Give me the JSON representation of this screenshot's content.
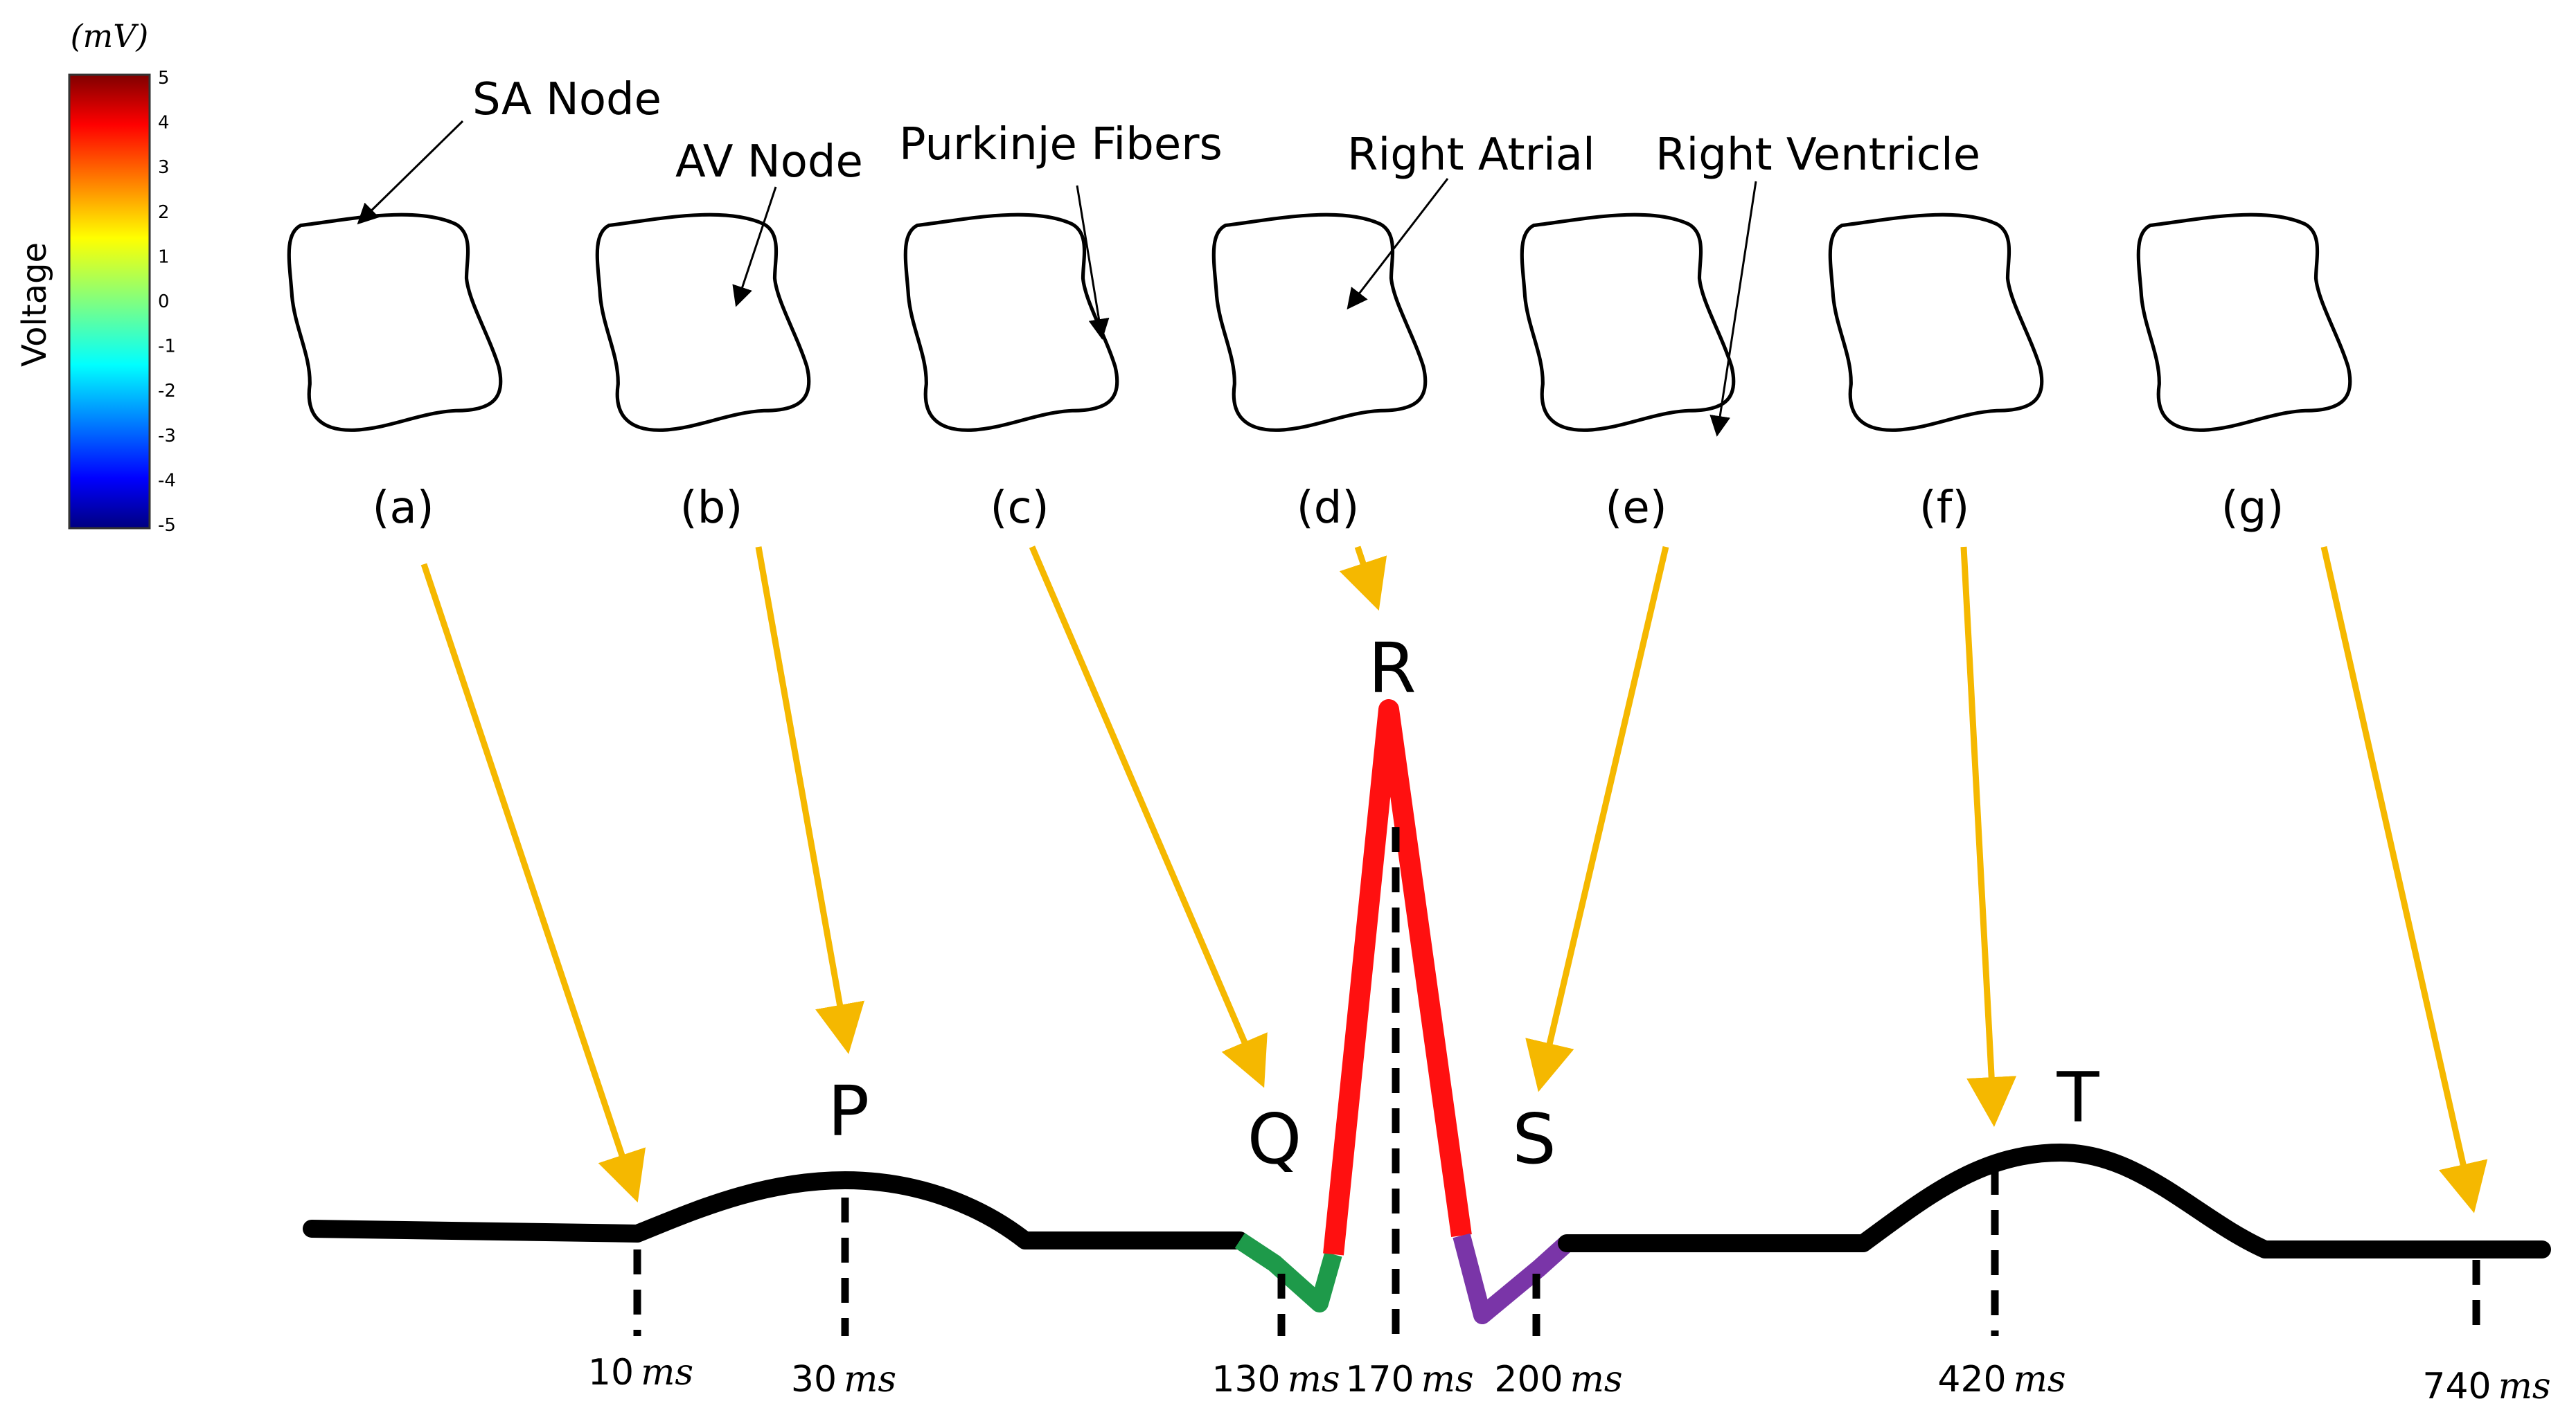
{
  "colorbar": {
    "unit_label": "(mV)",
    "axis_title": "Voltage",
    "ticks": [
      "5",
      "4",
      "3",
      "2",
      "1",
      "0",
      "-1",
      "-2",
      "-3",
      "-4",
      "-5"
    ]
  },
  "panels": [
    {
      "label": "(a)",
      "annotation": "SA Node",
      "theme": "sa"
    },
    {
      "label": "(b)",
      "annotation": "AV Node",
      "theme": "av"
    },
    {
      "label": "(c)",
      "annotation": "Purkinje Fibers",
      "theme": "pk"
    },
    {
      "label": "(d)",
      "annotation": "Right Atrial",
      "theme": "ra"
    },
    {
      "label": "(e)",
      "annotation": "Right Ventricle",
      "theme": "rv"
    },
    {
      "label": "(f)",
      "annotation": "",
      "theme": "f"
    },
    {
      "label": "(g)",
      "annotation": "",
      "theme": "g"
    }
  ],
  "waves": {
    "p": "P",
    "q": "Q",
    "r": "R",
    "s": "S",
    "t": "T"
  },
  "time_labels": [
    {
      "value": "10",
      "unit": "ms"
    },
    {
      "value": "30",
      "unit": "ms"
    },
    {
      "value": "130",
      "unit": "ms"
    },
    {
      "value": "170",
      "unit": "ms"
    },
    {
      "value": "200",
      "unit": "ms"
    },
    {
      "value": "420",
      "unit": "ms"
    },
    {
      "value": "740",
      "unit": "ms"
    }
  ],
  "colors": {
    "arrow": "#F5B800",
    "baseline": "#000000",
    "q_segment": "#1E9A4A",
    "r_segment": "#FF1010",
    "s_segment": "#7A35A8"
  }
}
